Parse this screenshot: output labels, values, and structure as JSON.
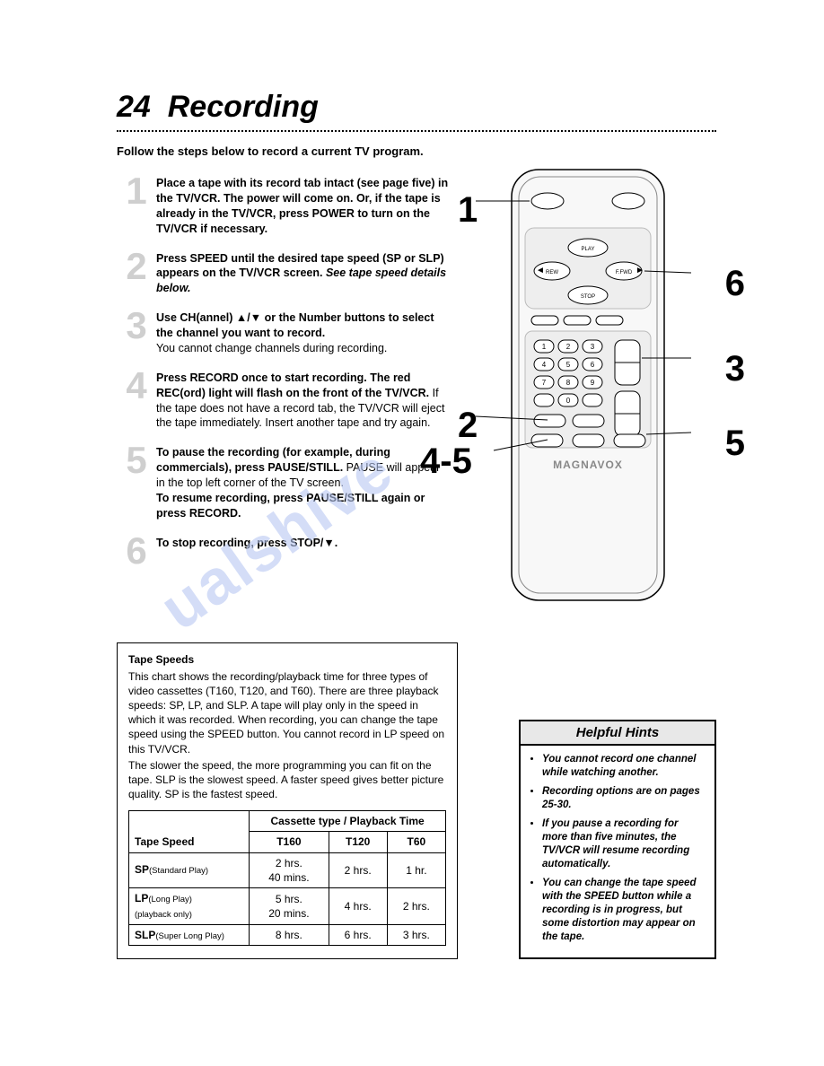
{
  "page": {
    "number": "24",
    "title": "Recording",
    "intro": "Follow the steps below to record a current TV program."
  },
  "steps": [
    {
      "n": "1",
      "html": "<span class='bold'>Place a tape with its record tab intact (see page five) in the TV/VCR. The power will come on. Or, if the tape is already in the TV/VCR, press POWER to turn on the TV/VCR if necessary.</span>"
    },
    {
      "n": "2",
      "html": "<span class='bold'>Press SPEED until the desired tape speed (SP or SLP) appears on the TV/VCR screen.</span> <span class='ital'>See tape speed details below.</span>"
    },
    {
      "n": "3",
      "html": "<span class='bold'>Use CH(annel) ▲/▼ or the Number buttons to select the channel you want to record.</span><br>You cannot change channels during recording."
    },
    {
      "n": "4",
      "html": "<span class='bold'>Press RECORD once to start recording. The red REC(ord) light will flash on the front of the TV/VCR.</span> If the tape does not have a record tab, the TV/VCR will eject the tape immediately. Insert another tape and try again."
    },
    {
      "n": "5",
      "html": "<span class='bold'>To pause the recording (for example, during commercials), press PAUSE/STILL.</span> PAUSE will appear in the top left corner of the TV screen.<br><span class='bold'>To resume recording, press PAUSE/STILL again or press RECORD.</span>"
    },
    {
      "n": "6",
      "html": "<span class='bold'>To stop recording, press STOP/▼.</span>"
    }
  ],
  "remote": {
    "brand": "MAGNAVOX",
    "callouts": {
      "c1": "1",
      "c2": "2",
      "c3": "3",
      "c45": "4-5",
      "c5": "5",
      "c6": "6"
    },
    "buttons": {
      "play": "PLAY",
      "rew": "REW",
      "ffwd": "F.FWD",
      "stop": "STOP"
    }
  },
  "tape": {
    "heading": "Tape Speeds",
    "para1": "This chart shows the recording/playback time for three types of video cassettes (T160, T120, and T60). There are three playback speeds: SP, LP, and SLP. A tape will play only in the speed in which it was recorded. When recording, you can change the tape speed using the SPEED button. You cannot record in LP speed on this TV/VCR.",
    "para2": "The slower the speed, the more programming you can fit on the tape. SLP is the slowest speed. A faster speed gives better picture quality. SP is the fastest speed.",
    "table": {
      "header_span": "Cassette type / Playback Time",
      "row_header": "Tape Speed",
      "cols": [
        "T160",
        "T120",
        "T60"
      ],
      "rows": [
        {
          "label": "SP",
          "sub": "(Standard Play)",
          "cells": [
            "2 hrs.<br>40 mins.",
            "2 hrs.",
            "1 hr."
          ]
        },
        {
          "label": "LP",
          "sub": "(Long Play)<br>(playback only)",
          "cells": [
            "5 hrs.<br>20 mins.",
            "4 hrs.",
            "2 hrs."
          ]
        },
        {
          "label": "SLP",
          "sub": "(Super Long Play)",
          "cells": [
            "8 hrs.",
            "6 hrs.",
            "3 hrs."
          ]
        }
      ]
    }
  },
  "hints": {
    "title": "Helpful Hints",
    "items": [
      "You cannot record one channel while watching another.",
      "Recording options are on pages 25-30.",
      "If you pause a recording for more than five minutes, the TV/VCR will resume recording automatically.",
      "You can change the tape speed with the SPEED button while a recording is in progress, but some distortion may appear on the tape."
    ]
  },
  "watermark": "ualshive"
}
